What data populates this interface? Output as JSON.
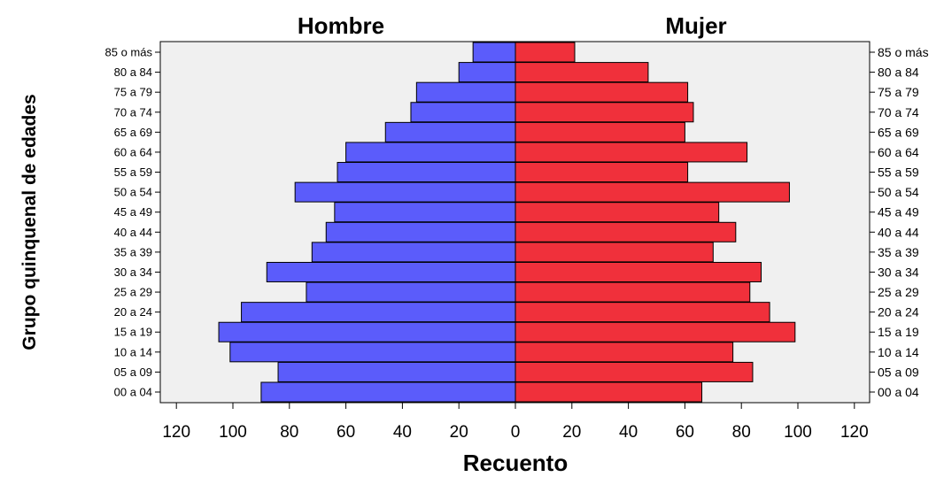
{
  "chart_data": {
    "type": "bar",
    "orientation": "horizontal-pyramid",
    "panel_titles": [
      "Hombre",
      "Mujer"
    ],
    "xlabel": "Recuento",
    "ylabel": "Grupo quinquenal de edades",
    "categories": [
      "85 o más",
      "80 a 84",
      "75 a 79",
      "70 a 74",
      "65 a 69",
      "60 a 64",
      "55 a 59",
      "50 a 54",
      "45 a 49",
      "40 a 44",
      "35 a 39",
      "30 a 34",
      "25 a 29",
      "20 a 24",
      "15 a 19",
      "10 a 14",
      "05 a 09",
      "00 a 04"
    ],
    "series": [
      {
        "name": "Hombre",
        "values": [
          15,
          20,
          35,
          37,
          46,
          60,
          63,
          78,
          64,
          67,
          72,
          88,
          74,
          97,
          105,
          101,
          84,
          90
        ]
      },
      {
        "name": "Mujer",
        "values": [
          21,
          47,
          61,
          63,
          60,
          82,
          61,
          97,
          72,
          78,
          70,
          87,
          83,
          90,
          99,
          77,
          84,
          66
        ]
      }
    ],
    "x_ticks": [
      120,
      100,
      80,
      60,
      40,
      20,
      0,
      20,
      40,
      60,
      80,
      100,
      120
    ],
    "xlim": [
      -125,
      125
    ],
    "grid": false,
    "colors": {
      "Hombre": "#5b5cfb",
      "Mujer": "#f0303b",
      "plot_background": "#f0f0f0"
    }
  }
}
